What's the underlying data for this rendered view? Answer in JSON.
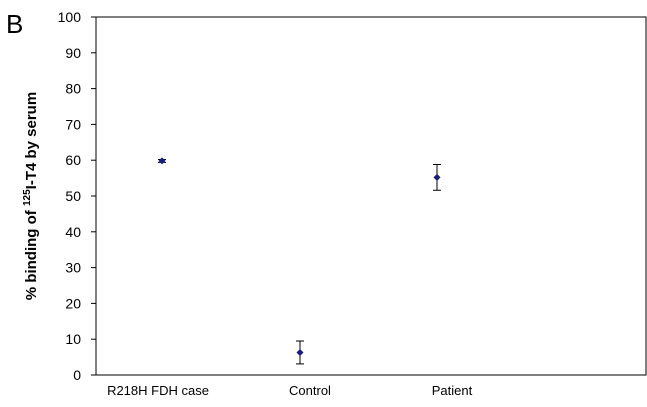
{
  "panel_label": "B",
  "chart_data": {
    "type": "scatter",
    "title": "",
    "xlabel": "",
    "ylabel_main": "% binding of ",
    "ylabel_superscript": "125",
    "ylabel_rest": "I-T4  by serum",
    "categories": [
      "R218H FDH case",
      "Control",
      "Patient"
    ],
    "series": [
      {
        "values": [
          59.8,
          6.3,
          55.2
        ],
        "error": [
          0.4,
          3.2,
          3.6
        ],
        "color": "#1a1a7a"
      }
    ],
    "ylim": [
      0,
      100
    ],
    "yticks": [
      "0",
      "10",
      "20",
      "30",
      "40",
      "50",
      "60",
      "70",
      "80",
      "90",
      "100"
    ],
    "grid": false,
    "legend": "none"
  }
}
